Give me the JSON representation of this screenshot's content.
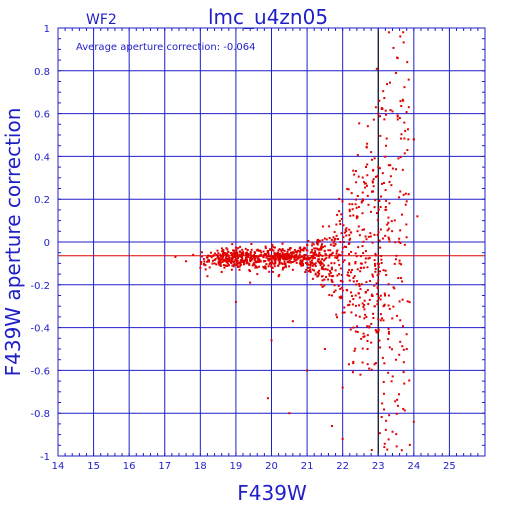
{
  "header": {
    "left_title": "WF2",
    "main_title": "lmc_u4zn05"
  },
  "annotation": "Average aperture correction:  -0.064",
  "chart_data": {
    "type": "scatter",
    "xlabel": "F439W",
    "ylabel": "F439W aperture correction",
    "xlim": [
      14,
      26
    ],
    "ylim": [
      -1,
      1
    ],
    "x_ticks": [
      "14",
      "15",
      "16",
      "17",
      "18",
      "19",
      "20",
      "21",
      "22",
      "23",
      "24",
      "25"
    ],
    "y_ticks": [
      "-1",
      "-0.8",
      "-0.6",
      "-0.4",
      "-0.2",
      "0",
      "0.2",
      "0.4",
      "0.6",
      "0.8",
      "1"
    ],
    "grid": true,
    "reference_lines": {
      "horizontal_zero": 0,
      "average_correction": -0.064,
      "vertical_x": 23
    },
    "colors": {
      "axes": "#1f1fc8",
      "points": "#e00000",
      "average_line": "#e00000"
    },
    "n_points": 1200,
    "points": [
      [
        17.3,
        -0.07
      ],
      [
        17.6,
        -0.09
      ],
      [
        17.8,
        -0.06
      ],
      [
        18.0,
        -0.12
      ],
      [
        18.1,
        -0.08
      ],
      [
        18.2,
        -0.16
      ],
      [
        18.3,
        -0.05
      ],
      [
        18.4,
        -0.1
      ],
      [
        18.5,
        -0.07
      ],
      [
        18.6,
        -0.14
      ],
      [
        18.7,
        -0.06
      ],
      [
        18.8,
        -0.09
      ],
      [
        18.9,
        -0.11
      ],
      [
        19.0,
        -0.08
      ],
      [
        19.1,
        -0.13
      ],
      [
        19.2,
        -0.06
      ],
      [
        19.3,
        -0.1
      ],
      [
        19.4,
        -0.19
      ],
      [
        19.5,
        -0.07
      ],
      [
        19.6,
        -0.15
      ],
      [
        19.7,
        -0.09
      ],
      [
        19.8,
        -0.12
      ],
      [
        19.9,
        -0.05
      ],
      [
        20.0,
        -0.1
      ],
      [
        20.1,
        -0.08
      ],
      [
        20.2,
        -0.16
      ],
      [
        20.3,
        -0.07
      ],
      [
        20.4,
        -0.11
      ],
      [
        20.5,
        -0.09
      ],
      [
        20.6,
        -0.13
      ],
      [
        20.7,
        -0.06
      ],
      [
        20.8,
        -0.1
      ],
      [
        20.9,
        -0.04
      ],
      [
        21.0,
        -0.08
      ],
      [
        21.1,
        -0.14
      ],
      [
        21.2,
        -0.03
      ],
      [
        21.3,
        -0.09
      ],
      [
        21.4,
        -0.2
      ],
      [
        21.5,
        -0.02
      ],
      [
        21.6,
        -0.11
      ],
      [
        21.7,
        -0.25
      ],
      [
        21.8,
        -0.01
      ],
      [
        21.9,
        -0.15
      ],
      [
        22.0,
        -0.33
      ],
      [
        22.1,
        0.05
      ],
      [
        22.2,
        -0.18
      ],
      [
        22.3,
        -0.4
      ],
      [
        22.4,
        0.12
      ],
      [
        22.5,
        -0.22
      ],
      [
        22.6,
        0.28
      ],
      [
        22.7,
        -0.5
      ],
      [
        22.8,
        0.42
      ],
      [
        22.9,
        -0.3
      ],
      [
        23.0,
        0.6
      ],
      [
        23.2,
        0.15
      ],
      [
        23.3,
        -0.42
      ],
      [
        23.5,
        0.34
      ],
      [
        23.6,
        -0.1
      ],
      [
        23.8,
        0.19
      ],
      [
        24.0,
        0.48
      ],
      [
        24.1,
        0.12
      ],
      [
        19.9,
        -0.73
      ],
      [
        20.5,
        -0.8
      ],
      [
        21.7,
        -0.86
      ],
      [
        22.0,
        -0.92
      ],
      [
        23.7,
        -0.78
      ],
      [
        24.0,
        -0.84
      ],
      [
        23.3,
        0.98
      ],
      [
        23.7,
        0.98
      ],
      [
        23.5,
        0.79
      ],
      [
        23.7,
        0.66
      ],
      [
        23.4,
        0.61
      ],
      [
        24.0,
        0.48
      ],
      [
        23.0,
        0.35
      ],
      [
        21.0,
        -0.6
      ],
      [
        21.5,
        -0.5
      ],
      [
        22.5,
        -0.62
      ],
      [
        22.0,
        -0.68
      ],
      [
        23.5,
        -0.55
      ],
      [
        23.8,
        -0.5
      ],
      [
        19.0,
        -0.28
      ],
      [
        20.0,
        -0.46
      ],
      [
        20.6,
        -0.37
      ],
      [
        22.3,
        -0.56
      ],
      [
        22.8,
        -0.47
      ],
      [
        23.3,
        -0.25
      ],
      [
        23.0,
        -0.18
      ],
      [
        22.6,
        -0.12
      ]
    ]
  }
}
